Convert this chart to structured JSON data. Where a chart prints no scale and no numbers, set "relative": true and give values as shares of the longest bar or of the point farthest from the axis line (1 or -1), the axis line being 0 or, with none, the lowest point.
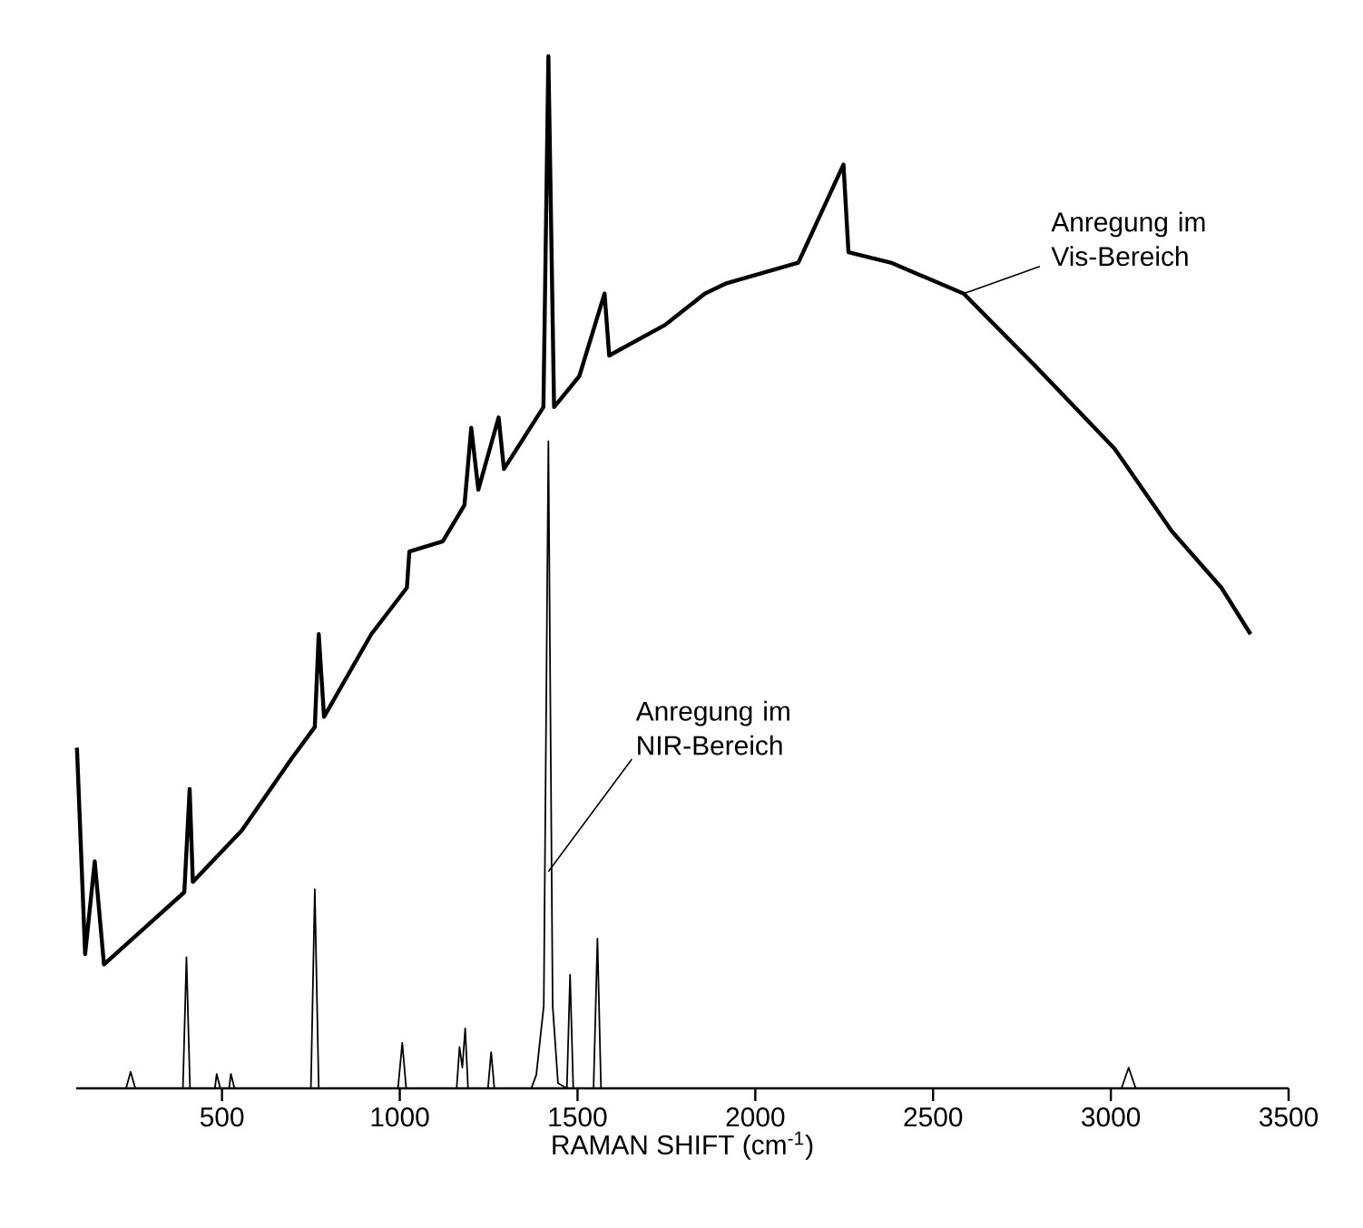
{
  "chart_data": {
    "type": "line",
    "xlabel": "RAMAN SHIFT (cm$^{-1}$)",
    "relative": true,
    "xlim": [
      90,
      3500
    ],
    "xticks": [
      500,
      1000,
      1500,
      2000,
      2500,
      3000,
      3500
    ],
    "annotations": [
      {
        "text": "Anregung im Vis-Bereich",
        "x": 2586,
        "y": 0.77
      },
      {
        "text": "Anregung im NIR-Bereich",
        "x": 1418,
        "y": 0.21
      }
    ],
    "series": [
      {
        "color": "#000000",
        "x": [
          92,
          115,
          142,
          168,
          394,
          409,
          418,
          556,
          697,
          761,
          772,
          787,
          920,
          1020,
          1027,
          1121,
          1182,
          1201,
          1221,
          1278,
          1293,
          1404,
          1418,
          1434,
          1505,
          1576,
          1589,
          1748,
          1858,
          1919,
          2121,
          2248,
          2262,
          2381,
          2586,
          2787,
          3010,
          3171,
          3311,
          3393
        ],
        "values": [
          0.33,
          0.13,
          0.22,
          0.12,
          0.19,
          0.29,
          0.2,
          0.25,
          0.32,
          0.35,
          0.44,
          0.36,
          0.44,
          0.485,
          0.52,
          0.53,
          0.565,
          0.64,
          0.58,
          0.65,
          0.6,
          0.66,
          1,
          0.66,
          0.69,
          0.77,
          0.71,
          0.74,
          0.77,
          0.78,
          0.8,
          0.895,
          0.81,
          0.8,
          0.77,
          0.7,
          0.62,
          0.54,
          0.485,
          0.44
        ]
      },
      {
        "color": "#000000",
        "x": [
          92,
          230,
          243,
          256,
          390,
          400,
          410,
          480,
          485,
          495,
          520,
          525,
          535,
          750,
          761,
          772,
          995,
          1007,
          1018,
          1160,
          1168,
          1176,
          1184,
          1192,
          1248,
          1257,
          1266,
          1370,
          1384,
          1405,
          1418,
          1430,
          1445,
          1470,
          1479,
          1488,
          1545,
          1556,
          1566,
          3030,
          3050,
          3070,
          3500
        ],
        "values": [
          0,
          0,
          0.016,
          0,
          0,
          0.127,
          0,
          0,
          0.014,
          0,
          0,
          0.014,
          0,
          0,
          0.193,
          0,
          0,
          0.044,
          0,
          0,
          0.04,
          0.02,
          0.058,
          0,
          0,
          0.035,
          0,
          0,
          0.013,
          0.08,
          0.627,
          0.08,
          0.005,
          0,
          0.11,
          0,
          0,
          0.145,
          0,
          0,
          0.02,
          0,
          0
        ]
      }
    ]
  }
}
